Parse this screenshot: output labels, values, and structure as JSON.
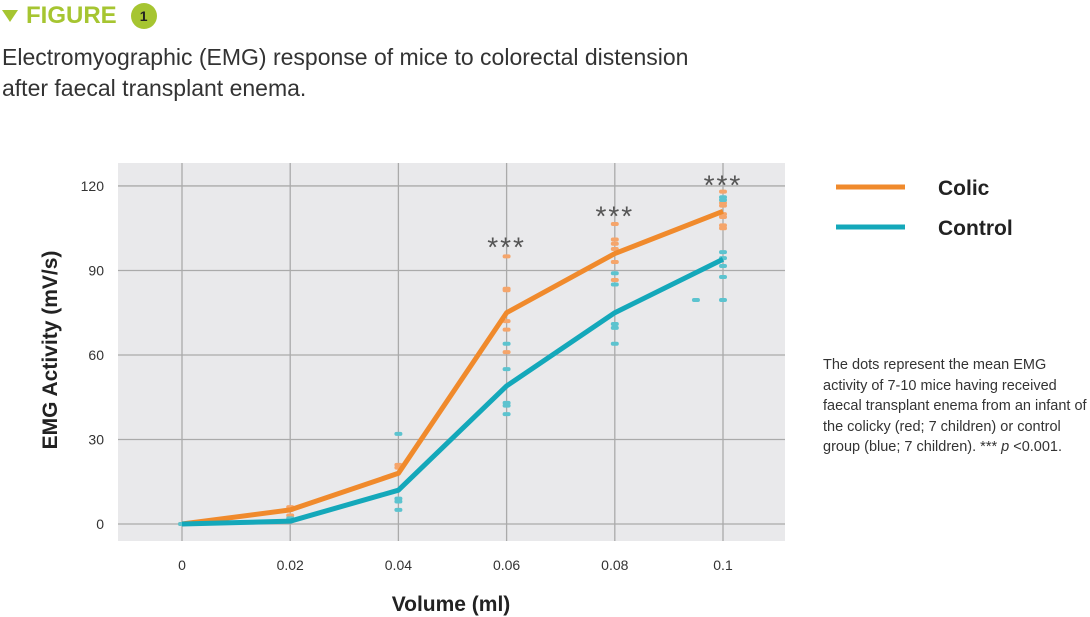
{
  "header": {
    "label": "FIGURE",
    "number": "1",
    "accent": "#a6c531"
  },
  "caption_line1": "Electromyographic (EMG) response of mice to colorectal distension",
  "caption_line2": "after faecal transplant enema.",
  "note": {
    "text": "The dots represent the mean EMG activity of 7-10 mice having received faecal transplant enema from an infant of the colicky (red; 7 children) or control group (blue; 7 children). *** ",
    "p": "p",
    "tail": " <0.001."
  },
  "chart_data": {
    "type": "line",
    "xlabel": "Volume (ml)",
    "ylabel": "EMG Activity  (mV/s)",
    "xlim": [
      -0.012,
      0.111
    ],
    "ylim": [
      -6,
      128
    ],
    "xticks": [
      "0",
      "0.02",
      "0.04",
      "0.06",
      "0.08",
      "0.1"
    ],
    "yticks": [
      "0",
      "30",
      "60",
      "90",
      "120"
    ],
    "grid": true,
    "legend": "right",
    "x": [
      0,
      0.02,
      0.04,
      0.06,
      0.08,
      0.1
    ],
    "series": [
      {
        "name": "Colic",
        "color": "#f08a2c",
        "dot_color": "#f5a56b",
        "values": [
          0,
          5,
          18,
          75,
          96,
          111
        ],
        "points": [
          [
            0,
            0
          ],
          [
            0.02,
            5
          ],
          [
            0.02,
            6
          ],
          [
            0.02,
            3
          ],
          [
            0.04,
            20
          ],
          [
            0.04,
            21
          ],
          [
            0.06,
            95
          ],
          [
            0.06,
            83.5
          ],
          [
            0.06,
            83
          ],
          [
            0.06,
            72
          ],
          [
            0.06,
            69
          ],
          [
            0.06,
            61
          ],
          [
            0.08,
            106.5
          ],
          [
            0.08,
            101
          ],
          [
            0.08,
            99.5
          ],
          [
            0.08,
            97.6
          ],
          [
            0.08,
            93
          ],
          [
            0.08,
            86.6
          ],
          [
            0.1,
            118
          ],
          [
            0.1,
            114
          ],
          [
            0.1,
            113
          ],
          [
            0.1,
            110
          ],
          [
            0.1,
            109
          ],
          [
            0.1,
            106
          ],
          [
            0.1,
            105
          ]
        ]
      },
      {
        "name": "Control",
        "color": "#14a8ba",
        "dot_color": "#5cc3cf",
        "values": [
          0,
          1,
          12,
          49,
          75,
          94
        ],
        "points": [
          [
            0,
            0
          ],
          [
            0.02,
            1
          ],
          [
            0.02,
            2
          ],
          [
            0.04,
            32
          ],
          [
            0.04,
            9
          ],
          [
            0.04,
            8
          ],
          [
            0.04,
            5
          ],
          [
            0.06,
            64
          ],
          [
            0.06,
            55
          ],
          [
            0.06,
            43
          ],
          [
            0.06,
            42
          ],
          [
            0.06,
            39
          ],
          [
            0.08,
            89
          ],
          [
            0.08,
            85
          ],
          [
            0.08,
            71
          ],
          [
            0.08,
            69.6
          ],
          [
            0.08,
            64
          ],
          [
            0.1,
            116
          ],
          [
            0.1,
            115
          ],
          [
            0.1,
            96.5
          ],
          [
            0.1,
            94.4
          ],
          [
            0.1,
            91.6
          ],
          [
            0.1,
            87.7
          ],
          [
            0.1,
            79.5
          ],
          [
            0.095,
            79.5
          ]
        ]
      }
    ],
    "annotations": [
      {
        "x": 0.06,
        "y": 100,
        "text": "***"
      },
      {
        "x": 0.08,
        "y": 111,
        "text": "***"
      },
      {
        "x": 0.1,
        "y": 122,
        "text": "***"
      }
    ]
  }
}
